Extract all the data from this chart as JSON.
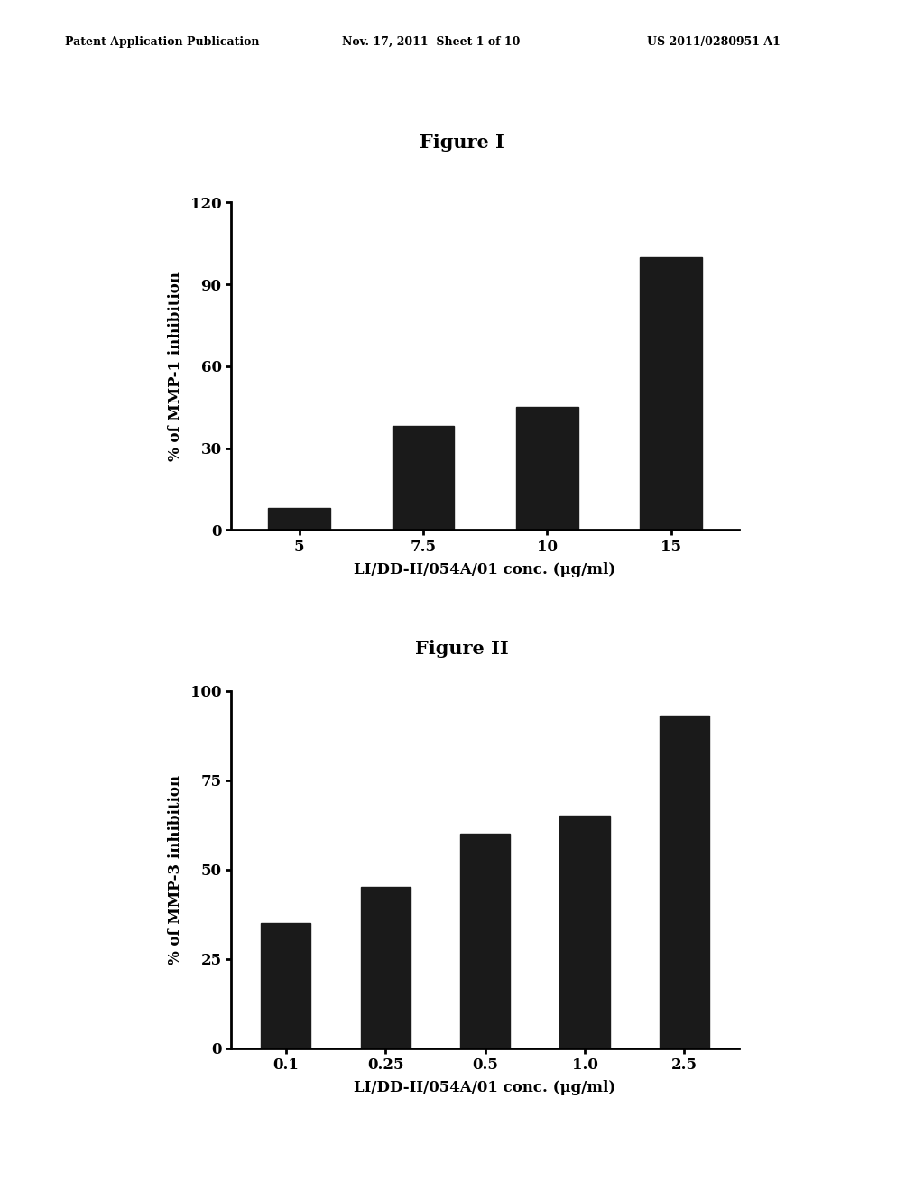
{
  "header_left": "Patent Application Publication",
  "header_mid": "Nov. 17, 2011  Sheet 1 of 10",
  "header_right": "US 2011/0280951 A1",
  "fig1_title": "Figure I",
  "fig1_categories": [
    "5",
    "7.5",
    "10",
    "15"
  ],
  "fig1_values": [
    8,
    38,
    45,
    100
  ],
  "fig1_ylabel": "% of MMP-1 inhibition",
  "fig1_xlabel": "LI/DD-II/054A/01 conc. (μg/ml)",
  "fig1_ylim": [
    0,
    120
  ],
  "fig1_yticks": [
    0,
    30,
    60,
    90,
    120
  ],
  "fig2_title": "Figure II",
  "fig2_categories": [
    "0.1",
    "0.25",
    "0.5",
    "1.0",
    "2.5"
  ],
  "fig2_values": [
    35,
    45,
    60,
    65,
    93
  ],
  "fig2_ylabel": "% of MMP-3 inhibition",
  "fig2_xlabel": "LI/DD-II/054A/01 conc. (μg/ml)",
  "fig2_ylim": [
    0,
    100
  ],
  "fig2_yticks": [
    0,
    25,
    50,
    75,
    100
  ],
  "bar_color": "#1a1a1a",
  "background_color": "#ffffff",
  "bar_width": 0.5,
  "header_fontsize": 9,
  "title_fontsize": 15,
  "axis_fontsize": 12,
  "tick_fontsize": 12
}
